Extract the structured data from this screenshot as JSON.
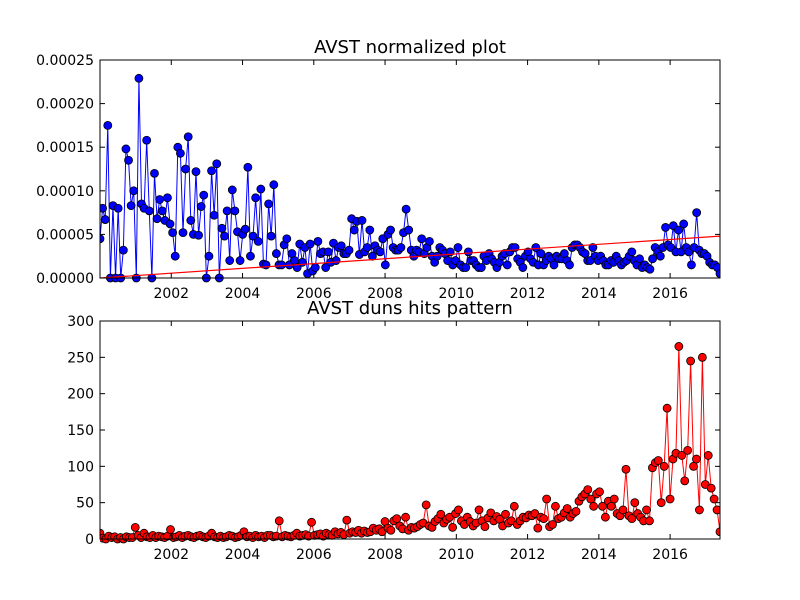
{
  "colors": {
    "background": "#ffffff",
    "axis": "#000000",
    "series1": "#0000ff",
    "series2": "#ff0000",
    "trend": "#ff0000"
  },
  "chart_data": [
    {
      "type": "line",
      "title": "AVST normalized plot",
      "xlabel": "",
      "ylabel": "",
      "xlim": [
        2000.0,
        2017.4
      ],
      "ylim": [
        0,
        0.00025
      ],
      "x_ticks": [
        2002,
        2004,
        2006,
        2008,
        2010,
        2012,
        2014,
        2016
      ],
      "x_tick_labels": [
        "2002",
        "2004",
        "2006",
        "2008",
        "2010",
        "2012",
        "2014",
        "2016"
      ],
      "y_ticks": [
        0,
        5e-05,
        0.0001,
        0.00015,
        0.0002,
        0.00025
      ],
      "y_tick_labels": [
        "0.00000",
        "0.00005",
        "0.00010",
        "0.00015",
        "0.00020",
        "0.00025"
      ],
      "marker": "circle",
      "series": [
        {
          "name": "AVST normalized",
          "color": "#0000ff",
          "values": [
            4.5e-05,
            8e-05,
            6.7e-05,
            0.000175,
            0.0,
            8.3e-05,
            0.0,
            8e-05,
            0.0,
            3.2e-05,
            0.000148,
            0.000135,
            8.3e-05,
            0.0001,
            0.0,
            0.000229,
            8.5e-05,
            8e-05,
            0.000158,
            7.7e-05,
            0.0,
            0.00012,
            6.8e-05,
            9e-05,
            7.7e-05,
            6.6e-05,
            9.2e-05,
            6.2e-05,
            5.2e-05,
            2.5e-05,
            0.00015,
            0.000143,
            5.2e-05,
            0.000125,
            0.000162,
            6.6e-05,
            5e-05,
            0.000122,
            4.9e-05,
            8.2e-05,
            9.5e-05,
            0.0,
            2.5e-05,
            0.000123,
            7.2e-05,
            0.000131,
            0.0,
            5.7e-05,
            4.8e-05,
            7.7e-05,
            2e-05,
            0.000101,
            7.7e-05,
            5.3e-05,
            2e-05,
            5e-05,
            5.6e-05,
            0.000127,
            2.5e-05,
            4.8e-05,
            9.2e-05,
            4.2e-05,
            0.000102,
            1.6e-05,
            1.5e-05,
            8.5e-05,
            4.8e-05,
            0.000107,
            2.8e-05,
            1.5e-05,
            1.5e-05,
            3.8e-05,
            4.5e-05,
            1.5e-05,
            2.8e-05,
            2e-05,
            1.2e-05,
            3.9e-05,
            1.8e-05,
            3.5e-05,
            5e-06,
            3.9e-05,
            8e-06,
            1.2e-05,
            4.2e-05,
            2.8e-05,
            3e-05,
            1.2e-05,
            3e-05,
            1.8e-05,
            4e-05,
            2e-05,
            3.5e-05,
            3.7e-05,
            2.8e-05,
            2.8e-05,
            3.2e-05,
            6.8e-05,
            5.5e-05,
            6.5e-05,
            2.7e-05,
            6.6e-05,
            3e-05,
            3.5e-05,
            5.5e-05,
            2.5e-05,
            3.7e-05,
            3.2e-05,
            3e-05,
            4.5e-05,
            1.5e-05,
            5e-05,
            5.5e-05,
            3.5e-05,
            3.2e-05,
            3.2e-05,
            3.5e-05,
            5.2e-05,
            7.9e-05,
            5.5e-05,
            3.2e-05,
            2.5e-05,
            3.2e-05,
            3e-05,
            4.5e-05,
            2.8e-05,
            3.5e-05,
            4.2e-05,
            2.5e-05,
            1.8e-05,
            2.5e-05,
            3.5e-05,
            3.2e-05,
            2.8e-05,
            2e-05,
            3e-05,
            1.5e-05,
            2e-05,
            3.5e-05,
            1.5e-05,
            1.2e-05,
            1.2e-05,
            3e-05,
            2e-05,
            2e-05,
            1.5e-05,
            1.2e-05,
            1.2e-05,
            2.5e-05,
            2e-05,
            2.8e-05,
            2.2e-05,
            1.8e-05,
            1.2e-05,
            1.8e-05,
            2.5e-05,
            2.8e-05,
            1.5e-05,
            3e-05,
            3.5e-05,
            3.5e-05,
            2.2e-05,
            1.8e-05,
            1.2e-05,
            2.5e-05,
            3e-05,
            2.2e-05,
            1.8e-05,
            3.5e-05,
            1.5e-05,
            2.8e-05,
            1.5e-05,
            2e-05,
            2.5e-05,
            2.2e-05,
            1.5e-05,
            2.5e-05,
            2.2e-05,
            2.2e-05,
            2.8e-05,
            2e-05,
            1.5e-05,
            3.5e-05,
            3.8e-05,
            3.8e-05,
            3.5e-05,
            3e-05,
            2.8e-05,
            2e-05,
            2e-05,
            3.5e-05,
            2.5e-05,
            2e-05,
            2.5e-05,
            2e-05,
            1.5e-05,
            1.5e-05,
            2e-05,
            1.8e-05,
            2.5e-05,
            2e-05,
            1.5e-05,
            1.8e-05,
            2e-05,
            2.5e-05,
            3e-05,
            2e-05,
            1.5e-05,
            2.2e-05,
            1.2e-05,
            1.5e-05,
            1.2e-05,
            1e-05,
            2.2e-05,
            3.5e-05,
            3e-05,
            2.5e-05,
            3.5e-05,
            5.8e-05,
            3.8e-05,
            3.5e-05,
            6e-05,
            3e-05,
            5.5e-05,
            3e-05,
            6.2e-05,
            3.5e-05,
            3e-05,
            1.5e-05,
            3.5e-05,
            7.5e-05,
            3.2e-05,
            2.8e-05,
            2.8e-05,
            2.5e-05,
            1.8e-05,
            1.5e-05,
            1.5e-05,
            1.2e-05,
            5e-06
          ]
        }
      ],
      "trendline": {
        "x": [
          2000.0,
          2017.4
        ],
        "y": [
          0.0,
          4.8e-05
        ]
      }
    },
    {
      "type": "line",
      "title": "AVST duns hits pattern",
      "xlabel": "",
      "ylabel": "",
      "xlim": [
        2000.0,
        2017.4
      ],
      "ylim": [
        0,
        300
      ],
      "x_ticks": [
        2002,
        2004,
        2006,
        2008,
        2010,
        2012,
        2014,
        2016
      ],
      "x_tick_labels": [
        "2002",
        "2004",
        "2006",
        "2008",
        "2010",
        "2012",
        "2014",
        "2016"
      ],
      "y_ticks": [
        0,
        50,
        100,
        150,
        200,
        250,
        300
      ],
      "y_tick_labels": [
        "0",
        "50",
        "100",
        "150",
        "200",
        "250",
        "300"
      ],
      "marker": "circle",
      "series": [
        {
          "name": "AVST duns hits",
          "color": "#ff0000",
          "values": [
            8,
            1,
            0,
            4,
            2,
            3,
            0,
            2,
            0,
            3,
            2,
            2,
            16,
            5,
            2,
            8,
            3,
            2,
            5,
            2,
            4,
            3,
            2,
            4,
            13,
            2,
            3,
            5,
            2,
            4,
            5,
            3,
            2,
            4,
            5,
            3,
            2,
            4,
            8,
            3,
            2,
            4,
            2,
            3,
            5,
            4,
            2,
            3,
            5,
            10,
            3,
            4,
            2,
            5,
            3,
            4,
            2,
            5,
            5,
            3,
            4,
            25,
            3,
            5,
            4,
            3,
            5,
            8,
            4,
            5,
            6,
            4,
            23,
            5,
            6,
            7,
            4,
            8,
            6,
            5,
            10,
            7,
            9,
            6,
            26,
            8,
            10,
            9,
            12,
            8,
            11,
            9,
            10,
            15,
            12,
            14,
            10,
            24,
            15,
            12,
            25,
            28,
            18,
            14,
            30,
            12,
            16,
            15,
            17,
            20,
            22,
            47,
            18,
            16,
            24,
            28,
            34,
            22,
            27,
            30,
            16,
            35,
            40,
            25,
            20,
            30,
            24,
            18,
            22,
            40,
            25,
            17,
            29,
            36,
            25,
            31,
            27,
            18,
            34,
            22,
            25,
            45,
            20,
            25,
            30,
            29,
            33,
            32,
            35,
            15,
            30,
            28,
            55,
            17,
            20,
            45,
            28,
            30,
            36,
            42,
            30,
            35,
            38,
            52,
            58,
            62,
            68,
            55,
            45,
            62,
            65,
            45,
            30,
            52,
            45,
            55,
            35,
            32,
            40,
            96,
            32,
            28,
            50,
            35,
            30,
            25,
            40,
            25,
            98,
            105,
            108,
            50,
            100,
            180,
            55,
            110,
            118,
            265,
            115,
            80,
            122,
            245,
            100,
            110,
            40,
            250,
            75,
            115,
            70,
            55,
            40,
            10
          ]
        }
      ]
    }
  ]
}
